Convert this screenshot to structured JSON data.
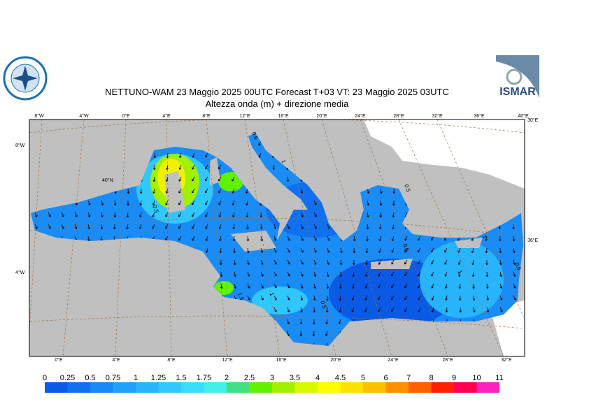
{
  "header": {
    "title": "NETTUNO-WAM  23   Maggio  2025 00UTC Forecast T+03 VT: 23   Maggio  2025 03UTC",
    "subtitle": "Altezza onda (m) + direzione media",
    "logo_right": "ISMAR"
  },
  "graticule": {
    "top": [
      "8°W",
      "4°W",
      "0°E",
      "4°E",
      "8°E",
      "12°E",
      "16°E",
      "20°E",
      "24°E",
      "28°E",
      "32°E",
      "36°E",
      "40°E"
    ],
    "bottom": [
      "0°E",
      "4°E",
      "8°E",
      "12°E",
      "16°E",
      "20°E",
      "24°E",
      "28°E",
      "32°E"
    ],
    "left": [
      "8°W",
      "4°W"
    ],
    "right": [
      "30°E",
      "36°E"
    ],
    "inner": [
      "40°N"
    ]
  },
  "contour_labels": [
    "0.5",
    "1",
    "0.5",
    "1",
    "1.5",
    "1",
    "0.5",
    "0.5",
    "1",
    "0.5",
    "0.5"
  ],
  "legend": {
    "ticks": [
      "0",
      "0.25",
      "0.5",
      "0.75",
      "1",
      "1.25",
      "1.5",
      "1.75",
      "2",
      "2.5",
      "3",
      "3.5",
      "4",
      "4.5",
      "5",
      "6",
      "7",
      "8",
      "9",
      "10",
      "11"
    ],
    "colors": [
      "#0a5ae6",
      "#1070f0",
      "#1888f5",
      "#20a0f8",
      "#28b4fa",
      "#30c8fc",
      "#38dcfe",
      "#40f0e8",
      "#40e080",
      "#60f000",
      "#a0f000",
      "#d8f800",
      "#ffff00",
      "#ffe000",
      "#ffc000",
      "#ff9000",
      "#ff6000",
      "#ff2000",
      "#ff0050",
      "#ff20c0"
    ]
  }
}
